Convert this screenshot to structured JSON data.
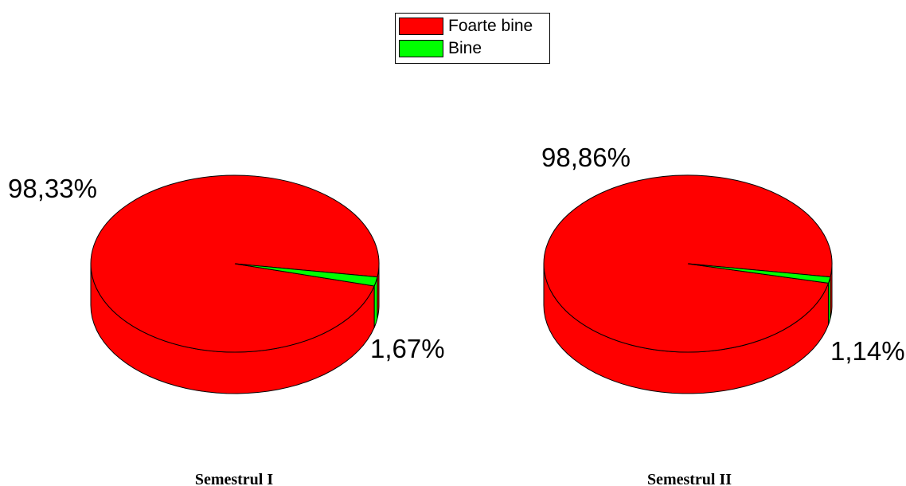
{
  "legend": [
    {
      "label": "Foarte bine",
      "color": "#ff0000"
    },
    {
      "label": "Bine",
      "color": "#00ff00"
    }
  ],
  "chart_data": [
    {
      "type": "pie",
      "title": "Semestrul I",
      "categories": [
        "Foarte bine",
        "Bine"
      ],
      "values": [
        98.33,
        1.67
      ],
      "data_labels": [
        "98,33%",
        "1,67%"
      ],
      "colors": [
        "#ff0000",
        "#00ff00"
      ],
      "legend_position": "top-center"
    },
    {
      "type": "pie",
      "title": "Semestrul II",
      "categories": [
        "Foarte bine",
        "Bine"
      ],
      "values": [
        98.86,
        1.14
      ],
      "data_labels": [
        "98,86%",
        "1,14%"
      ],
      "colors": [
        "#ff0000",
        "#00ff00"
      ],
      "legend_position": "top-center"
    }
  ]
}
